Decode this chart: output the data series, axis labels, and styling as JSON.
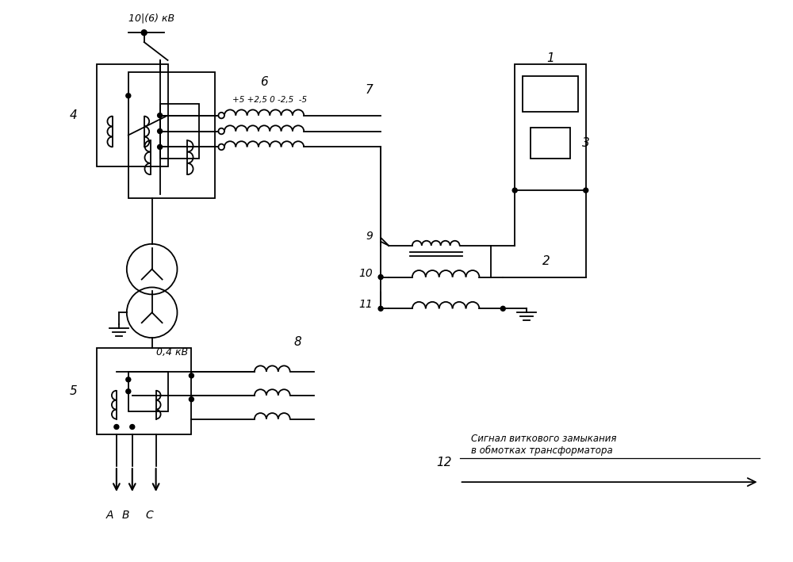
{
  "bg_color": "#ffffff",
  "line_color": "#000000",
  "figsize": [
    10.0,
    7.09
  ],
  "dpi": 100,
  "labels": {
    "voltage_high": "10|(6) кВ",
    "voltage_low": "0,4 кВ",
    "label_4": "4",
    "label_5": "5",
    "label_6": "6",
    "label_7": "7",
    "label_8": "8",
    "label_1": "1",
    "label_2": "2",
    "label_3": "3",
    "label_9": "9",
    "label_10": "10",
    "label_11": "11",
    "label_12": "12",
    "taps": "+5 +2,5 0 -2,5  -5",
    "phases": [
      "A",
      "B",
      "C"
    ],
    "signal_text": "Сигнал виткового замыкания\nв обмотках трансформатора"
  }
}
